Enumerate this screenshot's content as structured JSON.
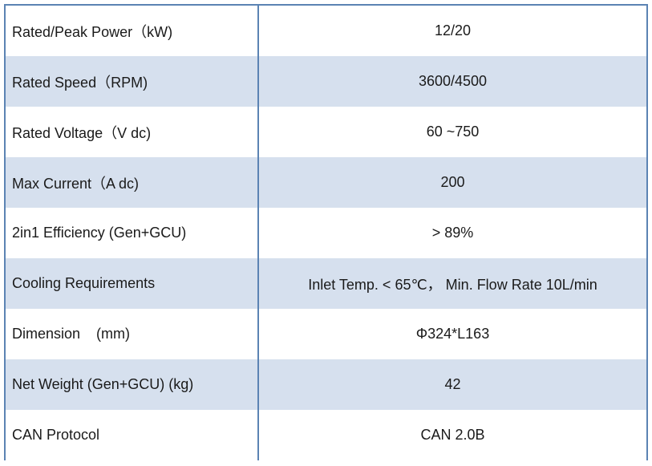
{
  "spec_table": {
    "rows": [
      {
        "label": "Rated/Peak Power（kW)",
        "value": "12/20"
      },
      {
        "label": "Rated Speed（RPM)",
        "value": "3600/4500"
      },
      {
        "label": "Rated Voltage（V dc)",
        "value": "60 ~750"
      },
      {
        "label": "Max Current（A dc)",
        "value": "200"
      },
      {
        "label": "2in1 Efficiency (Gen+GCU)",
        "value": "> 89%"
      },
      {
        "label": "Cooling Requirements",
        "value": "Inlet Temp. < 65℃， Min. Flow Rate 10L/min"
      },
      {
        "label": "Dimension    (mm)",
        "value": "Φ324*L163"
      },
      {
        "label": "Net Weight (Gen+GCU) (kg)",
        "value": "42"
      },
      {
        "label": "CAN Protocol",
        "value": "CAN 2.0B"
      }
    ]
  },
  "colors": {
    "border": "#5b83b3",
    "shaded_row": "#d6e0ee",
    "plain_row": "#ffffff",
    "text": "#1a1a1a"
  }
}
